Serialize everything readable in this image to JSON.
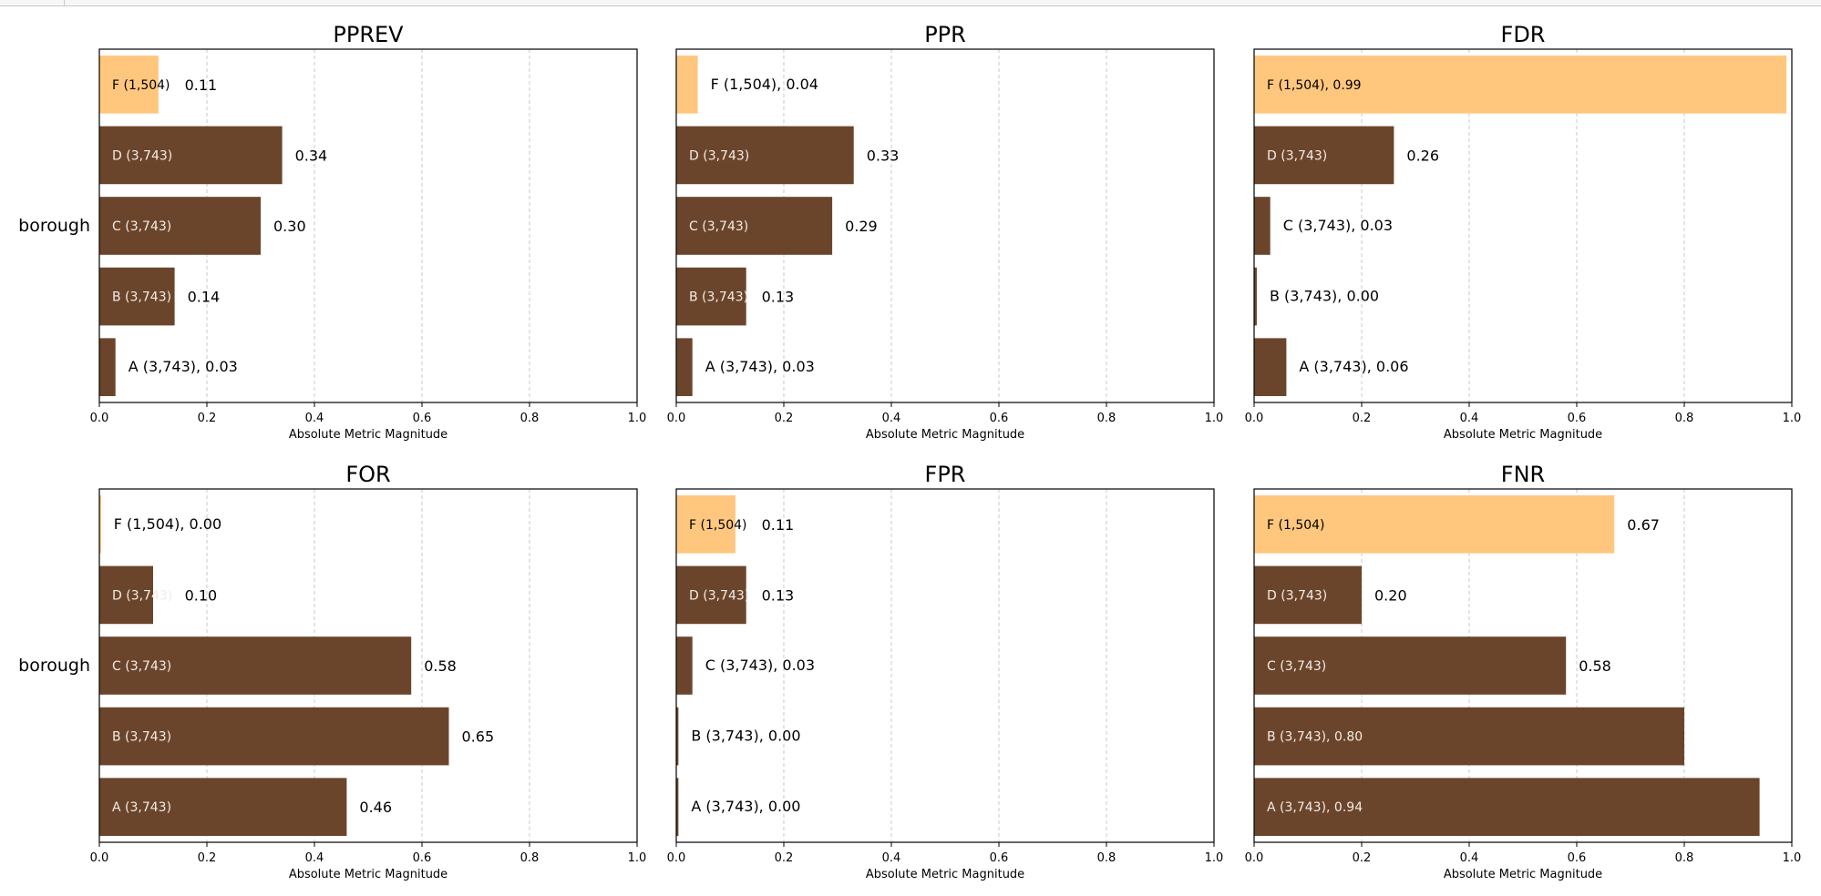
{
  "colors": {
    "priv": "#ffc77e",
    "other": "#6b452b",
    "grid": "#c8c8c8"
  },
  "chart_data": [
    {
      "type": "bar",
      "title": "PPREV",
      "xlabel": "Absolute Metric Magnitude",
      "ylabel": "borough",
      "xlim": [
        0,
        1
      ],
      "xticks": [
        "0.0",
        "0.2",
        "0.4",
        "0.6",
        "0.8",
        "1.0"
      ],
      "bars": [
        {
          "label": "F (1,504)",
          "value": 0.11,
          "value_text": "0.11",
          "priv": true
        },
        {
          "label": "D (3,743)",
          "value": 0.34,
          "value_text": "0.34",
          "priv": false
        },
        {
          "label": "C (3,743)",
          "value": 0.3,
          "value_text": "0.30",
          "priv": false
        },
        {
          "label": "B (3,743)",
          "value": 0.14,
          "value_text": "0.14",
          "priv": false
        },
        {
          "label": "A (3,743), 0.03",
          "value": 0.03,
          "value_text": "",
          "priv": false
        }
      ]
    },
    {
      "type": "bar",
      "title": "PPR",
      "xlabel": "Absolute Metric Magnitude",
      "ylabel": "",
      "xlim": [
        0,
        1
      ],
      "xticks": [
        "0.0",
        "0.2",
        "0.4",
        "0.6",
        "0.8",
        "1.0"
      ],
      "bars": [
        {
          "label": "F (1,504), 0.04",
          "value": 0.04,
          "value_text": "",
          "priv": true
        },
        {
          "label": "D (3,743)",
          "value": 0.33,
          "value_text": "0.33",
          "priv": false
        },
        {
          "label": "C (3,743)",
          "value": 0.29,
          "value_text": "0.29",
          "priv": false
        },
        {
          "label": "B (3,743)",
          "value": 0.13,
          "value_text": "0.13",
          "priv": false
        },
        {
          "label": "A (3,743), 0.03",
          "value": 0.03,
          "value_text": "",
          "priv": false
        }
      ]
    },
    {
      "type": "bar",
      "title": "FDR",
      "xlabel": "Absolute Metric Magnitude",
      "ylabel": "",
      "xlim": [
        0,
        1
      ],
      "xticks": [
        "0.0",
        "0.2",
        "0.4",
        "0.6",
        "0.8",
        "1.0"
      ],
      "bars": [
        {
          "label": "F (1,504), 0.99",
          "value": 0.99,
          "value_text": "",
          "priv": true
        },
        {
          "label": "D (3,743)",
          "value": 0.26,
          "value_text": "0.26",
          "priv": false
        },
        {
          "label": "C (3,743), 0.03",
          "value": 0.03,
          "value_text": "",
          "priv": false
        },
        {
          "label": "B (3,743), 0.00",
          "value": 0.005,
          "value_text": "",
          "priv": false
        },
        {
          "label": "A (3,743), 0.06",
          "value": 0.06,
          "value_text": "",
          "priv": false
        }
      ]
    },
    {
      "type": "bar",
      "title": "FOR",
      "xlabel": "Absolute Metric Magnitude",
      "ylabel": "borough",
      "xlim": [
        0,
        1
      ],
      "xticks": [
        "0.0",
        "0.2",
        "0.4",
        "0.6",
        "0.8",
        "1.0"
      ],
      "bars": [
        {
          "label": "F (1,504), 0.00",
          "value": 0.003,
          "value_text": "",
          "priv": true
        },
        {
          "label": "D (3,743)",
          "value": 0.1,
          "value_text": "0.10",
          "priv": false
        },
        {
          "label": "C (3,743)",
          "value": 0.58,
          "value_text": "0.58",
          "priv": false
        },
        {
          "label": "B (3,743)",
          "value": 0.65,
          "value_text": "0.65",
          "priv": false
        },
        {
          "label": "A (3,743)",
          "value": 0.46,
          "value_text": "0.46",
          "priv": false
        }
      ]
    },
    {
      "type": "bar",
      "title": "FPR",
      "xlabel": "Absolute Metric Magnitude",
      "ylabel": "",
      "xlim": [
        0,
        1
      ],
      "xticks": [
        "0.0",
        "0.2",
        "0.4",
        "0.6",
        "0.8",
        "1.0"
      ],
      "bars": [
        {
          "label": "F (1,504)",
          "value": 0.11,
          "value_text": "0.11",
          "priv": true
        },
        {
          "label": "D (3,743)",
          "value": 0.13,
          "value_text": "0.13",
          "priv": false
        },
        {
          "label": "C (3,743), 0.03",
          "value": 0.03,
          "value_text": "",
          "priv": false
        },
        {
          "label": "B (3,743), 0.00",
          "value": 0.004,
          "value_text": "",
          "priv": false
        },
        {
          "label": "A (3,743), 0.00",
          "value": 0.004,
          "value_text": "",
          "priv": false
        }
      ]
    },
    {
      "type": "bar",
      "title": "FNR",
      "xlabel": "Absolute Metric Magnitude",
      "ylabel": "",
      "xlim": [
        0,
        1
      ],
      "xticks": [
        "0.0",
        "0.2",
        "0.4",
        "0.6",
        "0.8",
        "1.0"
      ],
      "bars": [
        {
          "label": "F (1,504)",
          "value": 0.67,
          "value_text": "0.67",
          "priv": true
        },
        {
          "label": "D (3,743)",
          "value": 0.2,
          "value_text": "0.20",
          "priv": false
        },
        {
          "label": "C (3,743)",
          "value": 0.58,
          "value_text": "0.58",
          "priv": false
        },
        {
          "label": "B (3,743), 0.80",
          "value": 0.8,
          "value_text": "",
          "priv": false
        },
        {
          "label": "A (3,743), 0.94",
          "value": 0.94,
          "value_text": "",
          "priv": false
        }
      ]
    }
  ]
}
